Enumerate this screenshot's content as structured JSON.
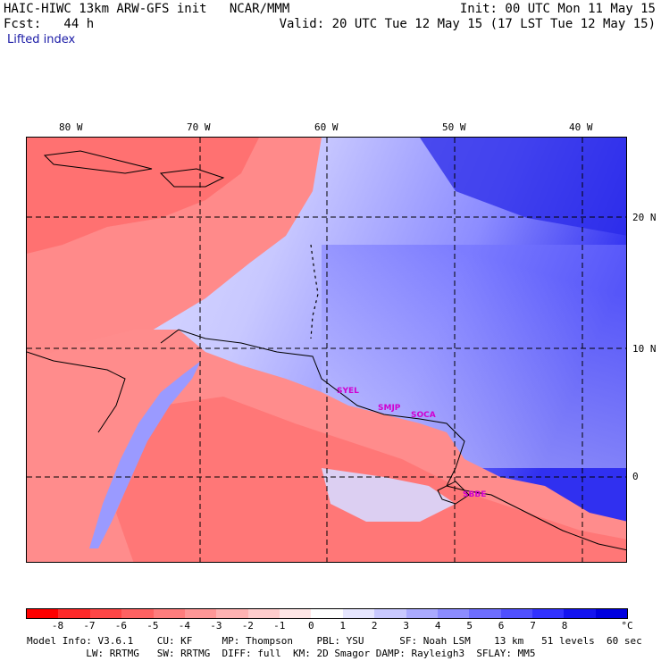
{
  "header": {
    "title_left": "HAIC-HIWC 13km ARW-GFS init   NCAR/MMM",
    "init": "Init: 00 UTC Mon 11 May 15",
    "fcst": "Fcst:   44 h",
    "valid": "Valid: 20 UTC Tue 12 May 15 (17 LST Tue 12 May 15)",
    "field": "Lifted index"
  },
  "map": {
    "lon_labels": [
      "80 W",
      "70 W",
      "60 W",
      "50 W",
      "40 W"
    ],
    "lat_labels": [
      "20 N",
      "10 N",
      "0"
    ],
    "cities": [
      "SYEL",
      "SMJP",
      "SOCA",
      "SBBE"
    ]
  },
  "colorbar": {
    "unit": "°C",
    "ticks": [
      "-8",
      "-7",
      "-6",
      "-5",
      "-4",
      "-3",
      "-2",
      "-1",
      "0",
      "1",
      "2",
      "3",
      "4",
      "5",
      "6",
      "7",
      "8"
    ],
    "colors": [
      "#ff0000",
      "#ff2a2a",
      "#ff4646",
      "#ff6262",
      "#ff7d7d",
      "#ff9797",
      "#ffb2b2",
      "#ffcccc",
      "#ffe6e6",
      "#ffffff",
      "#e6e6ff",
      "#c8c8ff",
      "#aaaaff",
      "#8c8cff",
      "#6e6eff",
      "#5050ff",
      "#3232ff",
      "#1414f0",
      "#0000e0"
    ]
  },
  "model_info": {
    "line1": "Model Info: V3.6.1    CU: KF     MP: Thompson    PBL: YSU      SF: Noah LSM    13 km   51 levels  60 sec",
    "line2": "          LW: RRTMG   SW: RRTMG  DIFF: full  KM: 2D Smagor DAMP: Rayleigh3  SFLAY: MM5"
  }
}
